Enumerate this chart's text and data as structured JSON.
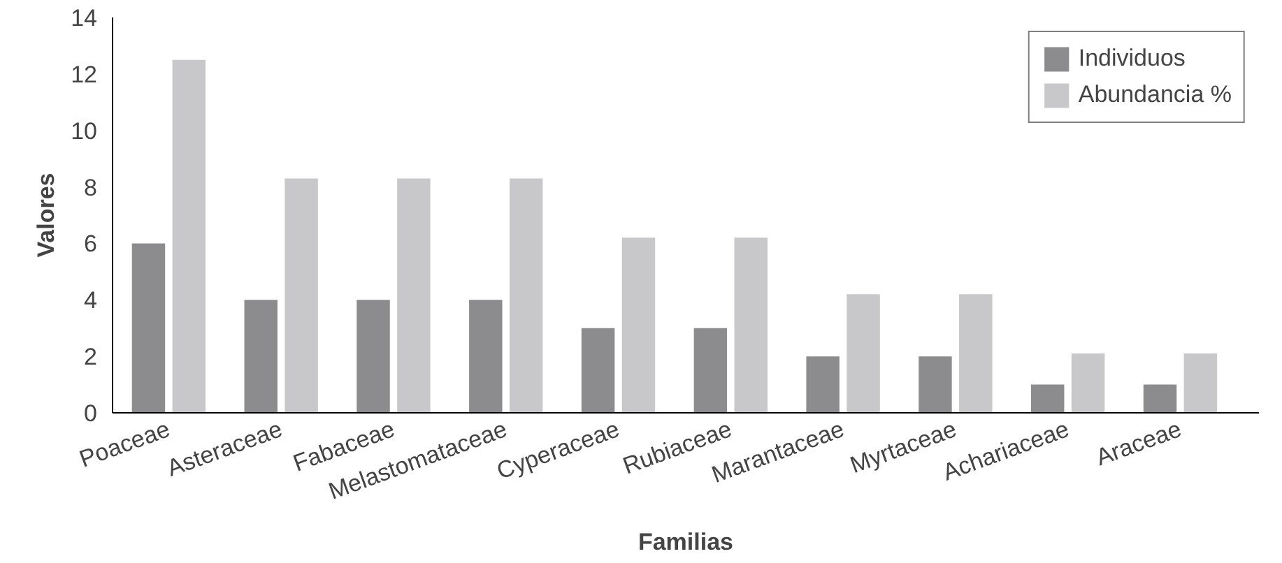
{
  "chart_data": {
    "type": "bar",
    "xlabel": "Familias",
    "ylabel": "Valores",
    "categories": [
      "Poaceae",
      "Asteraceae",
      "Fabaceae",
      "Melastomataceae",
      "Cyperaceae",
      "Rubiaceae",
      "Marantaceae",
      "Myrtaceae",
      "Achariaceae",
      "Araceae"
    ],
    "series": [
      {
        "name": "Individuos",
        "color": "#8c8c8e",
        "values": [
          6,
          4,
          4,
          4,
          3,
          3,
          2,
          2,
          1,
          1
        ]
      },
      {
        "name": "Abundancia %",
        "color": "#c8c8ca",
        "values": [
          12.5,
          8.3,
          8.3,
          8.3,
          6.2,
          6.2,
          4.2,
          4.2,
          2.1,
          2.1
        ]
      }
    ],
    "ylim": [
      0,
      14
    ],
    "yticks": [
      0,
      2,
      4,
      6,
      8,
      10,
      12,
      14
    ],
    "grid": false,
    "legend": "top right"
  }
}
